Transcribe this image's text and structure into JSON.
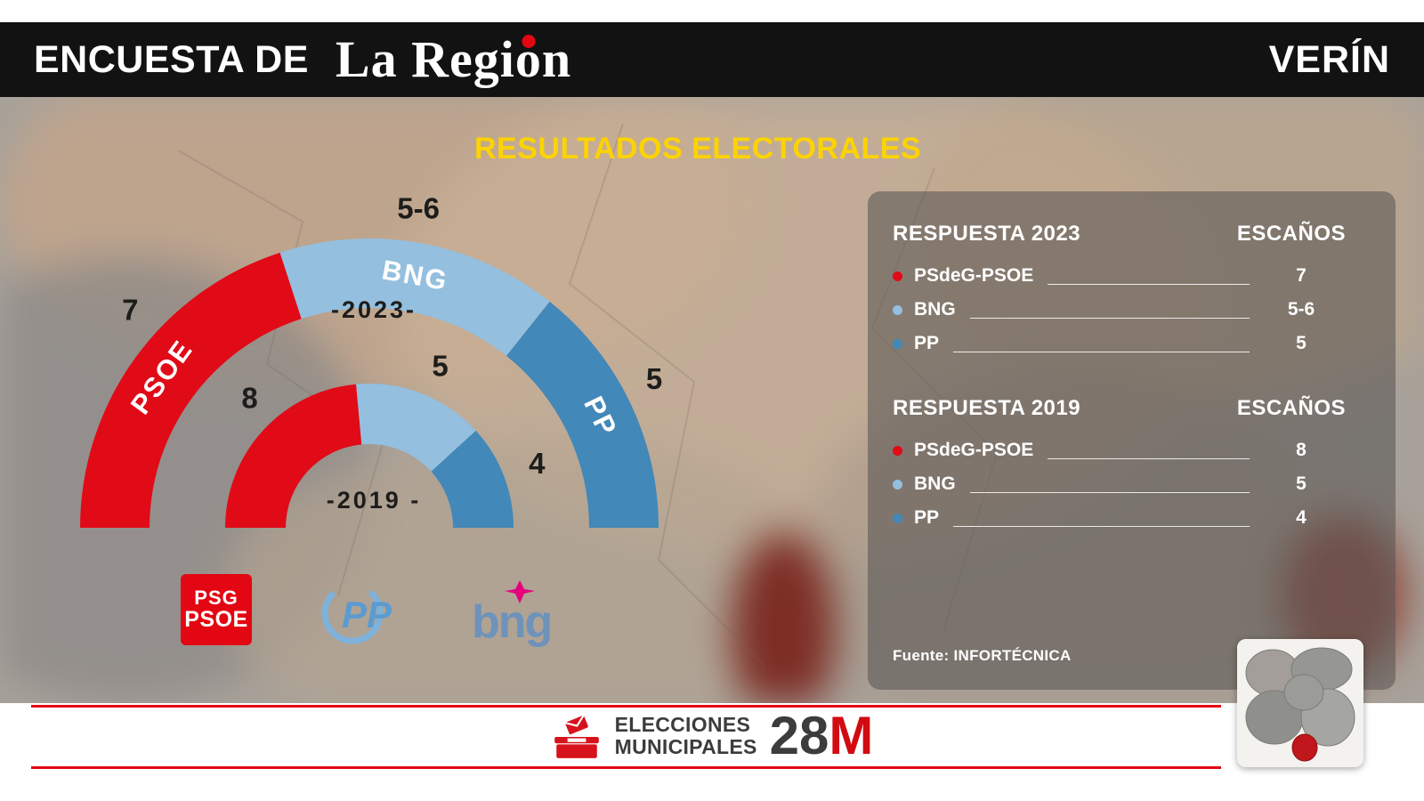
{
  "header": {
    "title": "ENCUESTA DE",
    "brand_pre": "La Regi",
    "brand_o": "o",
    "brand_post": "n",
    "location": "VERÍN"
  },
  "main_title": "RESULTADOS ELECTORALES",
  "colors": {
    "psoe": "#e10a17",
    "bng": "#94bfdf",
    "pp": "#4288b8",
    "accent_red": "#e30613",
    "yellow": "#fcd303"
  },
  "chart_data": [
    {
      "type": "half-donut",
      "year": "2023",
      "year_label": "-2023-",
      "categories": [
        "PSOE",
        "BNG",
        "PP"
      ],
      "values": [
        7,
        5.5,
        5
      ],
      "value_labels": [
        "7",
        "5-6",
        "5"
      ],
      "color_keys": [
        "psoe",
        "bng",
        "pp"
      ],
      "show_names": true
    },
    {
      "type": "half-donut",
      "year": "2019",
      "year_label": "-2019 -",
      "categories": [
        "PSOE",
        "BNG",
        "PP"
      ],
      "values": [
        8,
        5,
        4
      ],
      "value_labels": [
        "8",
        "5",
        "4"
      ],
      "color_keys": [
        "psoe",
        "bng",
        "pp"
      ],
      "show_names": false
    }
  ],
  "panel": {
    "sections": [
      {
        "title": "RESPUESTA 2023",
        "seats_header": "ESCAÑOS",
        "rows": [
          {
            "party": "PSdeG-PSOE",
            "seats": "7",
            "color_key": "psoe"
          },
          {
            "party": "BNG",
            "seats": "5-6",
            "color_key": "bng"
          },
          {
            "party": "PP",
            "seats": "5",
            "color_key": "pp"
          }
        ]
      },
      {
        "title": "RESPUESTA 2019",
        "seats_header": "ESCAÑOS",
        "rows": [
          {
            "party": "PSdeG-PSOE",
            "seats": "8",
            "color_key": "psoe"
          },
          {
            "party": "BNG",
            "seats": "5",
            "color_key": "bng"
          },
          {
            "party": "PP",
            "seats": "4",
            "color_key": "pp"
          }
        ]
      }
    ],
    "source": "Fuente: INFORTÉCNICA"
  },
  "logos": {
    "psoe_line1": "PSG",
    "psoe_line2": "PSOE",
    "pp": "PP",
    "bng": "bng"
  },
  "footer": {
    "line1": "ELECCIONES",
    "line2": "MUNICIPALES",
    "number": "28",
    "suffix": "M"
  }
}
